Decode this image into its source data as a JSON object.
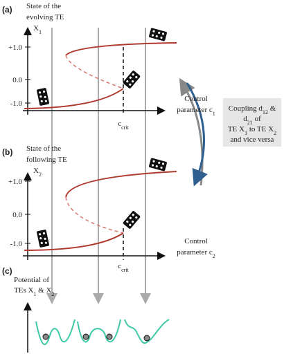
{
  "panel_a": {
    "label": "(a)",
    "ylabel": [
      [
        "State of  the"
      ],
      [
        "evolving TE"
      ],
      [
        "X",
        {
          "sub": "1"
        }
      ]
    ],
    "yticks": [
      "+1.0",
      "0.0",
      "-1.0"
    ],
    "xlabel": [
      [
        "Control"
      ],
      [
        "parameter c",
        {
          "sub": "1"
        }
      ]
    ],
    "crit": [
      "c",
      {
        "sub": "crit"
      }
    ]
  },
  "panel_b": {
    "label": "(b)",
    "ylabel": [
      [
        "State of the"
      ],
      [
        "following TE"
      ],
      [
        "X",
        {
          "sub": "2"
        }
      ]
    ],
    "yticks": [
      "+1.0",
      "0.0",
      "-1.0"
    ],
    "xlabel": [
      [
        "Control"
      ],
      [
        "parameter c",
        {
          "sub": "2"
        }
      ]
    ],
    "crit": [
      "c",
      {
        "sub": "crit"
      }
    ]
  },
  "coupling": [
    [
      "Coupling d",
      {
        "sub": "12"
      },
      " &"
    ],
    [
      "d",
      {
        "sub": "21"
      },
      " of"
    ],
    [
      "TE X",
      {
        "sub": "1"
      },
      " to TE X",
      {
        "sub": "2"
      }
    ],
    [
      "and vice versa"
    ]
  ],
  "panel_c": {
    "label": "(c)",
    "ylabel": [
      [
        "Potential of"
      ],
      [
        "TEs X",
        {
          "sub": "1"
        },
        " & X",
        {
          "sub": "2"
        }
      ]
    ]
  }
}
